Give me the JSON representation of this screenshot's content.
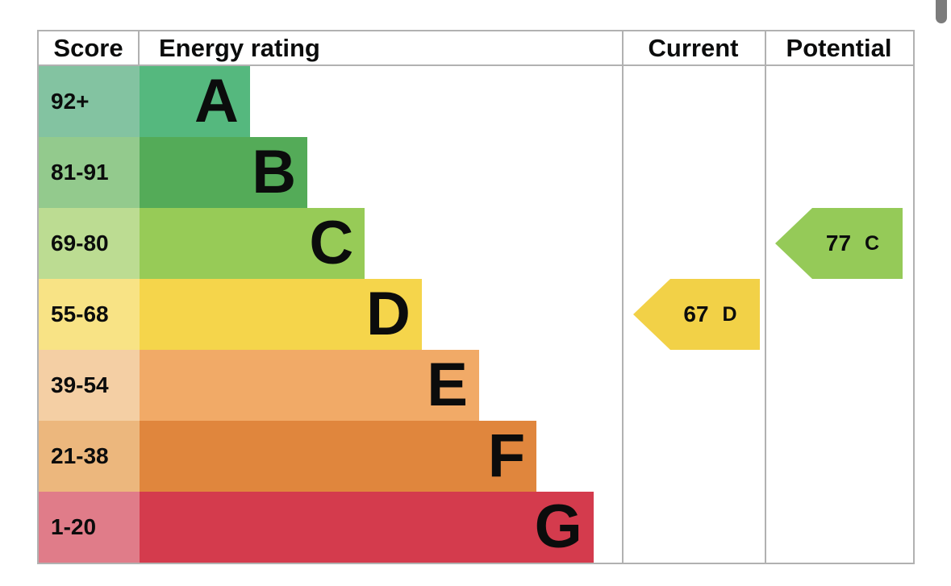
{
  "page": {
    "background": "#ffffff",
    "scrollbar_thumb_color": "#7c7c7c",
    "border_color": "#b1b1b1",
    "text_color": "#0b0c0c"
  },
  "table": {
    "headers": {
      "score": "Score",
      "energy_rating": "Energy rating",
      "current": "Current",
      "potential": "Potential"
    }
  },
  "chart_data": {
    "type": "bar",
    "orientation": "horizontal",
    "title": "Energy rating",
    "bands": [
      {
        "letter": "A",
        "score": "92+",
        "bar_color": "#55b87e",
        "score_color": "#83c3a1",
        "bar_fraction": 0.229
      },
      {
        "letter": "B",
        "score": "81-91",
        "bar_color": "#54ab58",
        "score_color": "#93ca8d",
        "bar_fraction": 0.348
      },
      {
        "letter": "C",
        "score": "69-80",
        "bar_color": "#97cb57",
        "score_color": "#bcdc92",
        "bar_fraction": 0.467
      },
      {
        "letter": "D",
        "score": "55-68",
        "bar_color": "#f5d54b",
        "score_color": "#f8e385",
        "bar_fraction": 0.585
      },
      {
        "letter": "E",
        "score": "39-54",
        "bar_color": "#f1aa67",
        "score_color": "#f4cfa4",
        "bar_fraction": 0.704
      },
      {
        "letter": "F",
        "score": "21-38",
        "bar_color": "#e0863d",
        "score_color": "#ecb77d",
        "bar_fraction": 0.823
      },
      {
        "letter": "G",
        "score": "1-20",
        "bar_color": "#d43b4d",
        "score_color": "#e07c89",
        "bar_fraction": 0.941
      }
    ],
    "current": {
      "value": "67",
      "band": "D",
      "color": "#f2d147"
    },
    "potential": {
      "value": "77",
      "band": "C",
      "color": "#95ca58"
    }
  }
}
